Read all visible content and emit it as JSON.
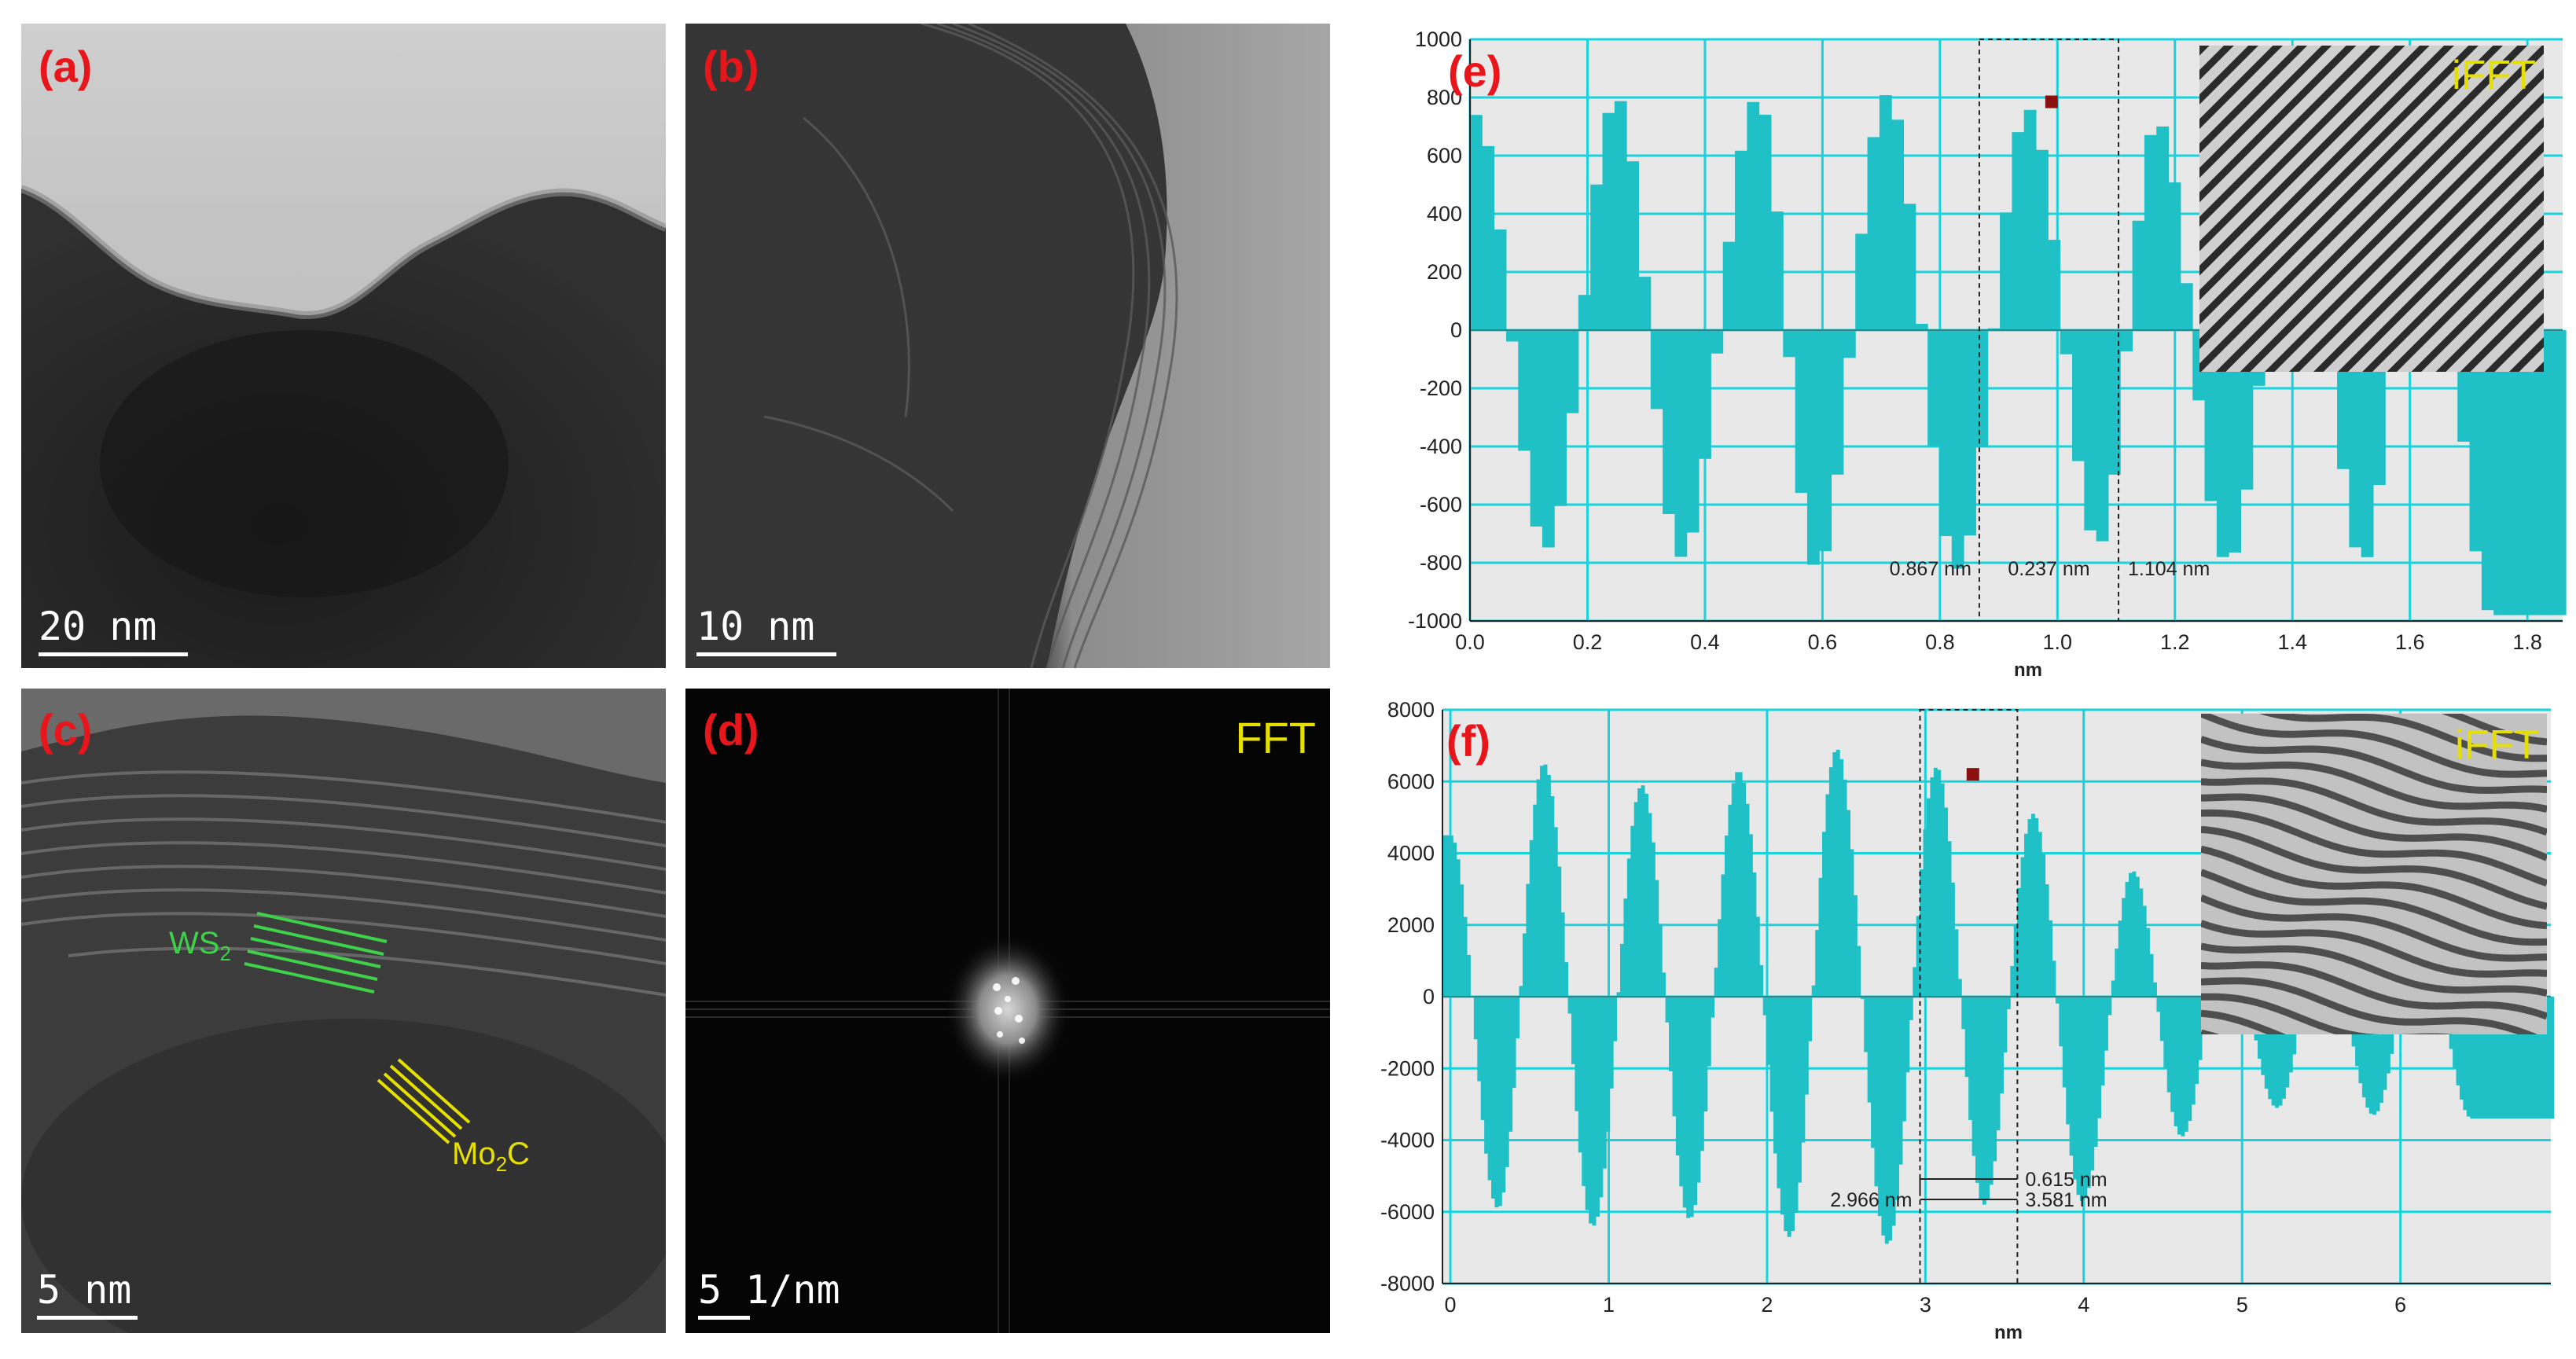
{
  "panels": {
    "a": {
      "label": "(a)",
      "scale_bar": "20 nm"
    },
    "b": {
      "label": "(b)",
      "scale_bar": "10 nm"
    },
    "c": {
      "label": "(c)",
      "scale_bar": "5 nm",
      "ws2_base": "WS",
      "ws2_sub": "2",
      "mo2c_pre": "Mo",
      "mo2c_sub": "2",
      "mo2c_post": "C"
    },
    "d": {
      "label": "(d)",
      "scale_bar": "5 1/nm",
      "title": "FFT"
    },
    "e": {
      "label": "(e)",
      "inset_title": "iFFT",
      "measure": {
        "left": "0.867 nm",
        "mid": "0.237 nm",
        "right": "1.104 nm"
      }
    },
    "f": {
      "label": "(f)",
      "inset_title": "iFFT",
      "measure": {
        "top": "0.615 nm",
        "left": "2.966 nm",
        "right": "3.581 nm"
      }
    }
  },
  "chart_data": [
    {
      "panel": "e",
      "type": "bar",
      "xlabel": "nm",
      "ylabel": "",
      "xlim": [
        0.0,
        1.86
      ],
      "ylim": [
        -1000,
        1000
      ],
      "x_ticks": [
        "0.0",
        "0.2",
        "0.4",
        "0.6",
        "0.8",
        "1.0",
        "1.2",
        "1.4",
        "1.6",
        "1.8"
      ],
      "y_ticks": [
        "1000",
        "800",
        "600",
        "400",
        "200",
        "0",
        "-200",
        "-400",
        "-600",
        "-800",
        "-1000"
      ],
      "grid": true,
      "color": "#1fc1c6",
      "period_nm": 0.237,
      "amplitude": 800,
      "peaks_x": [
        0.01,
        0.25,
        0.49,
        0.71,
        0.95,
        1.17,
        1.41,
        1.62
      ],
      "peaks_y": [
        740,
        800,
        800,
        810,
        760,
        720,
        700,
        700
      ],
      "troughs_x": [
        0.13,
        0.36,
        0.59,
        0.83,
        1.07,
        1.29,
        1.52,
        1.74
      ],
      "troughs_y": [
        -750,
        -780,
        -820,
        -820,
        -740,
        -800,
        -800,
        -980
      ],
      "selection_x": [
        0.867,
        1.104
      ],
      "marker": [
        0.99,
        785
      ]
    },
    {
      "panel": "f",
      "type": "bar",
      "xlabel": "nm",
      "ylabel": "",
      "xlim": [
        -0.05,
        6.95
      ],
      "ylim": [
        -8000,
        8000
      ],
      "x_ticks": [
        "0",
        "1",
        "2",
        "3",
        "4",
        "5",
        "6"
      ],
      "y_ticks": [
        "8000",
        "6000",
        "4000",
        "2000",
        "0",
        "-2000",
        "-4000",
        "-6000",
        "-8000"
      ],
      "grid": true,
      "color": "#1fc1c6",
      "period_nm": 0.615,
      "amplitude": 6000,
      "peaks_x": [
        0.0,
        0.59,
        1.21,
        1.82,
        2.44,
        3.07,
        3.68,
        4.31,
        4.9,
        5.52,
        6.13
      ],
      "peaks_y": [
        4500,
        6500,
        5900,
        6300,
        6900,
        6400,
        5100,
        3500,
        2000,
        2000,
        2000
      ],
      "troughs_x": [
        0.3,
        0.9,
        1.51,
        2.14,
        2.76,
        3.37,
        3.99,
        4.62,
        5.22,
        5.83,
        6.45
      ],
      "troughs_y": [
        -5900,
        -6400,
        -6200,
        -6700,
        -6900,
        -5800,
        -5700,
        -3900,
        -3100,
        -3300,
        -3400
      ],
      "selection_x": [
        2.966,
        3.581
      ],
      "marker": [
        3.3,
        6200
      ]
    }
  ]
}
